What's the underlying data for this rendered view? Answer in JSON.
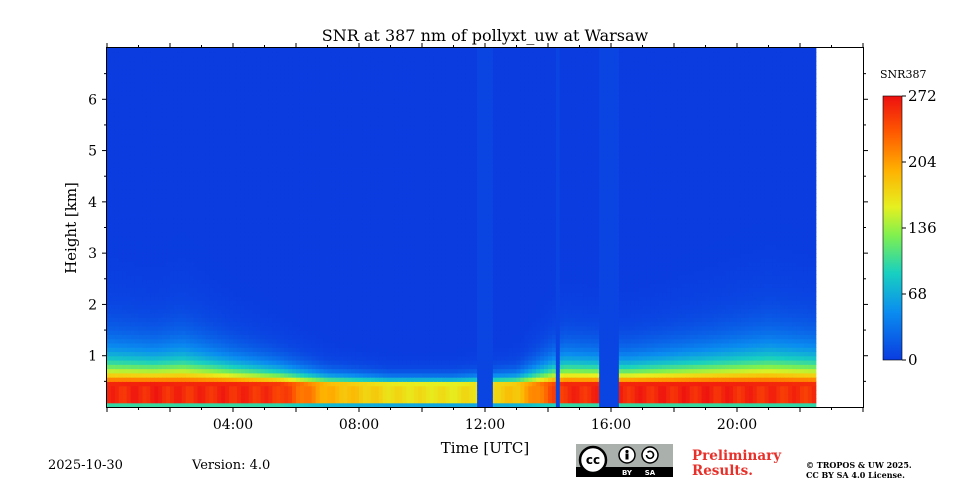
{
  "chart_data": {
    "type": "heatmap",
    "title": "SNR at 387 nm of pollyxt_uw at Warsaw",
    "xlabel": "Time [UTC]",
    "ylabel": "Height [km]",
    "x_range_hours": [
      0,
      24
    ],
    "y_range_km": [
      0,
      7
    ],
    "data_end_hour": 22.5,
    "x_tick_labels": [
      {
        "hour": 4,
        "label": "04:00"
      },
      {
        "hour": 8,
        "label": "08:00"
      },
      {
        "hour": 12,
        "label": "12:00"
      },
      {
        "hour": 16,
        "label": "16:00"
      },
      {
        "hour": 20,
        "label": "20:00"
      }
    ],
    "y_tick_labels": [
      {
        "km": 1,
        "label": "1"
      },
      {
        "km": 2,
        "label": "2"
      },
      {
        "km": 3,
        "label": "3"
      },
      {
        "km": 4,
        "label": "4"
      },
      {
        "km": 5,
        "label": "5"
      },
      {
        "km": 6,
        "label": "6"
      }
    ],
    "colorbar": {
      "label": "SNR387",
      "min": 0,
      "max": 272,
      "ticks": [
        {
          "value": 0,
          "label": "0"
        },
        {
          "value": 68,
          "label": "68"
        },
        {
          "value": 136,
          "label": "136"
        },
        {
          "value": 204,
          "label": "204"
        },
        {
          "value": 272,
          "label": "272"
        }
      ]
    },
    "signal_profile": [
      {
        "hour": 0.0,
        "peak_snr": 265,
        "layer_top_km": 1.5
      },
      {
        "hour": 1.5,
        "peak_snr": 270,
        "layer_top_km": 1.4
      },
      {
        "hour": 2.4,
        "peak_snr": 265,
        "layer_top_km": 1.5
      },
      {
        "hour": 4.0,
        "peak_snr": 268,
        "layer_top_km": 1.2
      },
      {
        "hour": 5.5,
        "peak_snr": 260,
        "layer_top_km": 1.0
      },
      {
        "hour": 7.0,
        "peak_snr": 200,
        "layer_top_km": 0.8
      },
      {
        "hour": 9.0,
        "peak_snr": 175,
        "layer_top_km": 0.7
      },
      {
        "hour": 11.0,
        "peak_snr": 170,
        "layer_top_km": 0.7
      },
      {
        "hour": 13.0,
        "peak_snr": 190,
        "layer_top_km": 0.8
      },
      {
        "hour": 14.5,
        "peak_snr": 265,
        "layer_top_km": 1.3
      },
      {
        "hour": 16.5,
        "peak_snr": 268,
        "layer_top_km": 1.2
      },
      {
        "hour": 19.0,
        "peak_snr": 270,
        "layer_top_km": 1.4
      },
      {
        "hour": 21.0,
        "peak_snr": 265,
        "layer_top_km": 1.6
      },
      {
        "hour": 22.5,
        "peak_snr": 262,
        "layer_top_km": 1.5
      }
    ],
    "no_signal_gaps_hours": [
      [
        11.7,
        12.2
      ],
      [
        14.2,
        14.35
      ],
      [
        15.6,
        16.2
      ]
    ]
  },
  "footer": {
    "date": "2025-10-30",
    "version": "Version: 4.0",
    "preliminary_line1": "Preliminary",
    "preliminary_line2": "Results.",
    "license_line1": "© TROPOS & UW 2025.",
    "license_line2": "CC BY SA 4.0 License.",
    "cc_badge_text": "cc",
    "cc_by_text": "BY",
    "cc_sa_text": "SA"
  },
  "colors": {
    "background_blue": "#0a46dc",
    "accent_red": "#e8302a"
  }
}
